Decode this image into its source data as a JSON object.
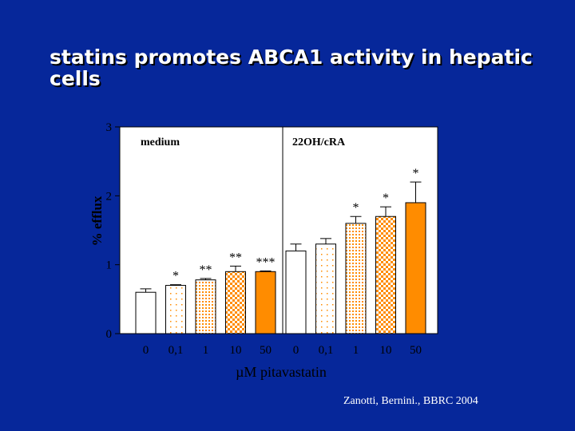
{
  "slide": {
    "title": "statins promotes ABCA1 activity in  hepatic cells",
    "citation": "Zanotti, Bernini., BBRC 2004"
  },
  "chart_data": {
    "type": "bar",
    "title": "",
    "xlabel": "µM pitavastatin",
    "ylabel": "% efflux",
    "ylim": [
      0,
      3
    ],
    "yticks": [
      0,
      1,
      2,
      3
    ],
    "grid": false,
    "panels": [
      {
        "label": "medium",
        "categories": [
          "0",
          "0,1",
          "1",
          "10",
          "50"
        ],
        "values": [
          0.6,
          0.7,
          0.78,
          0.9,
          0.9
        ],
        "errors": [
          0.05,
          0.01,
          0.02,
          0.08,
          0.01
        ],
        "significance": [
          "",
          "*",
          "**",
          "**",
          "***"
        ]
      },
      {
        "label": "22OH/cRA",
        "categories": [
          "0",
          "0,1",
          "1",
          "10",
          "50"
        ],
        "values": [
          1.2,
          1.3,
          1.6,
          1.7,
          1.9
        ],
        "errors": [
          0.1,
          0.08,
          0.1,
          0.14,
          0.3
        ],
        "significance": [
          "",
          "",
          "*",
          "*",
          "*"
        ]
      }
    ],
    "bar_styles": [
      "white",
      "white-sparse-orange-dots",
      "white-dense-orange-dots",
      "orange-checker",
      "orange-solid"
    ],
    "colors": {
      "background": "#06279a",
      "axis": "#000000",
      "accent": "#ff8c00",
      "plot_bg": "#ffffff"
    }
  }
}
